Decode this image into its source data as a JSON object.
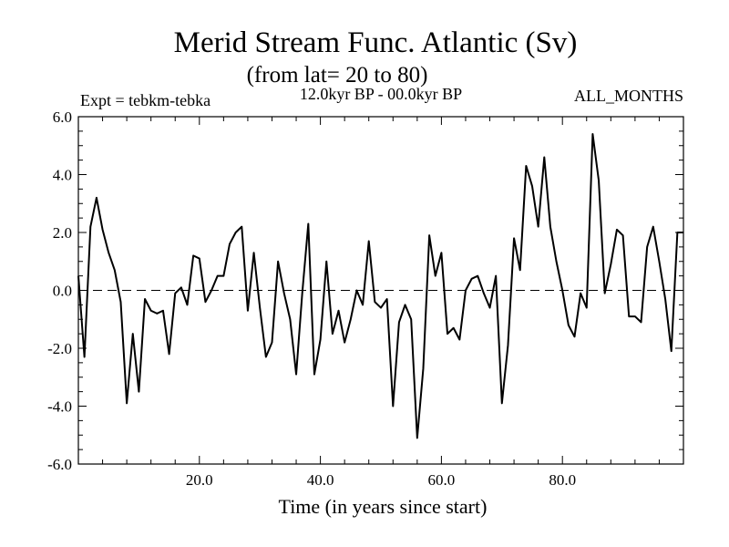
{
  "chart_data": {
    "type": "line",
    "title": "Merid Stream Func. Atlantic (Sv)",
    "subtitle": "(from lat= 20 to 80)",
    "experiment": "Expt = tebkm-tebka",
    "period": "12.0kyr BP - 00.0kyr BP",
    "months": "ALL_MONTHS",
    "xlabel": "Time (in years since start)",
    "ylabel": "",
    "xlim": [
      0,
      100
    ],
    "ylim": [
      -6,
      6
    ],
    "x_ticks": [
      20,
      40,
      60,
      80
    ],
    "x_tick_labels": [
      "20.0",
      "40.0",
      "60.0",
      "80.0"
    ],
    "y_ticks": [
      -6,
      -4,
      -2,
      0,
      2,
      4,
      6
    ],
    "y_tick_labels": [
      "-6.0",
      "-4.0",
      "-2.0",
      "0.0",
      "2.0",
      "4.0",
      "6.0"
    ],
    "zero_line": 0,
    "series": [
      {
        "name": "Merid Stream Func. Atlantic",
        "x": [
          0,
          1,
          2,
          3,
          4,
          5,
          6,
          7,
          8,
          9,
          10,
          11,
          12,
          13,
          14,
          15,
          16,
          17,
          18,
          19,
          20,
          21,
          22,
          23,
          24,
          25,
          26,
          27,
          28,
          29,
          30,
          31,
          32,
          33,
          34,
          35,
          36,
          37,
          38,
          39,
          40,
          41,
          42,
          43,
          44,
          45,
          46,
          47,
          48,
          49,
          50,
          51,
          52,
          53,
          54,
          55,
          56,
          57,
          58,
          59,
          60,
          61,
          62,
          63,
          64,
          65,
          66,
          67,
          68,
          69,
          70,
          71,
          72,
          73,
          74,
          75,
          76,
          77,
          78,
          79,
          80,
          81,
          82,
          83,
          84,
          85,
          86,
          87,
          88,
          89,
          90,
          91,
          92,
          93,
          94,
          95,
          96,
          97,
          98,
          99,
          100
        ],
        "values": [
          0.5,
          -2.3,
          2.2,
          3.2,
          2.1,
          1.3,
          0.7,
          -0.4,
          -3.9,
          -1.5,
          -3.5,
          -0.3,
          -0.7,
          -0.8,
          -0.7,
          -2.2,
          -0.1,
          0.1,
          -0.5,
          1.2,
          1.1,
          -0.4,
          0.0,
          0.5,
          0.5,
          1.6,
          2.0,
          2.2,
          -0.7,
          1.3,
          -0.6,
          -2.3,
          -1.8,
          1.0,
          -0.1,
          -1.0,
          -2.9,
          -0.1,
          2.3,
          -2.9,
          -1.7,
          1.0,
          -1.5,
          -0.7,
          -1.8,
          -1.0,
          0.0,
          -0.5,
          1.7,
          -0.4,
          -0.6,
          -0.3,
          -4.0,
          -1.1,
          -0.5,
          -1.0,
          -5.1,
          -2.7,
          1.9,
          0.5,
          1.3,
          -1.5,
          -1.3,
          -1.7,
          0.0,
          0.4,
          0.5,
          -0.1,
          -0.6,
          0.5,
          -3.9,
          -1.9,
          1.8,
          0.7,
          4.3,
          3.6,
          2.2,
          4.6,
          2.2,
          1.0,
          0.0,
          -1.2,
          -1.6,
          -0.1,
          -0.6,
          5.4,
          3.8,
          -0.1,
          0.9,
          2.1,
          1.9,
          -0.9,
          -0.9,
          -1.1,
          1.5,
          2.2,
          1.0,
          -0.3,
          -2.1,
          2.0,
          2.0
        ]
      }
    ]
  }
}
